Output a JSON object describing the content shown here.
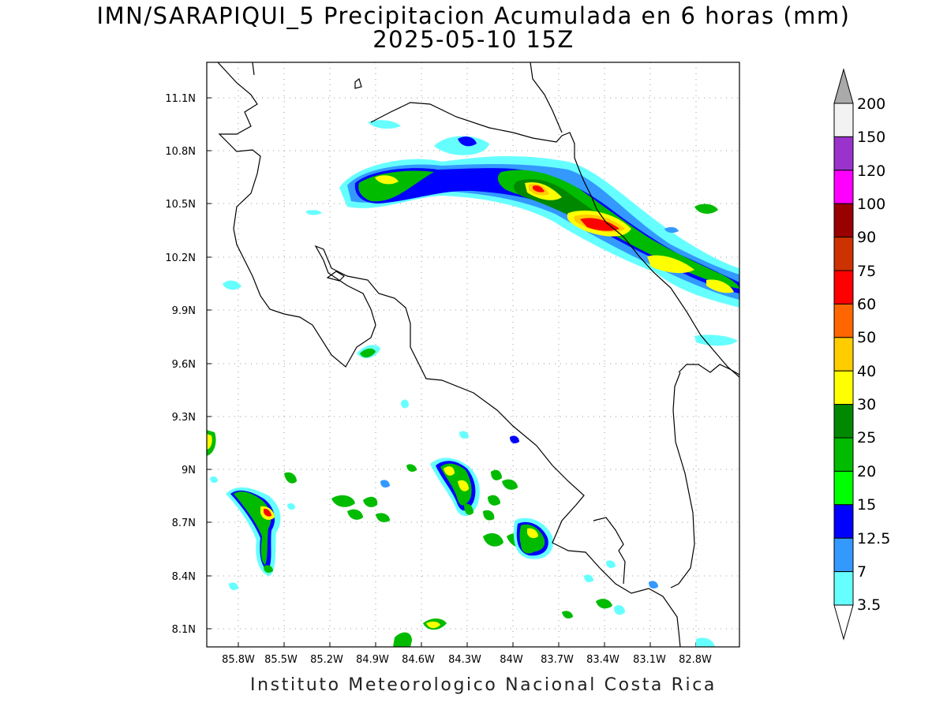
{
  "title": {
    "line1": "IMN/SARAPIQUI_5 Precipitacion Acumulada en 6 horas (mm)",
    "line2": "2025-05-10 15Z"
  },
  "credit": "Instituto Meteorologico Nacional Costa Rica",
  "axes": {
    "lat_ticks": [
      "11.1N",
      "10.8N",
      "10.5N",
      "10.2N",
      "9.9N",
      "9.6N",
      "9.3N",
      "9N",
      "8.7N",
      "8.4N",
      "8.1N"
    ],
    "lon_ticks": [
      "85.8W",
      "85.5W",
      "85.2W",
      "84.9W",
      "84.6W",
      "84.3W",
      "84W",
      "83.7W",
      "83.4W",
      "83.1W",
      "82.8W"
    ]
  },
  "colorbar": {
    "labels": [
      "200",
      "150",
      "120",
      "100",
      "90",
      "75",
      "60",
      "50",
      "40",
      "30",
      "25",
      "20",
      "15",
      "12.5",
      "7",
      "3.5"
    ],
    "colors": [
      "#f2f2f2",
      "#9933cc",
      "#ff00ff",
      "#990000",
      "#cc3300",
      "#ff0000",
      "#ff6600",
      "#ffcc00",
      "#ffff00",
      "#008800",
      "#00bb00",
      "#00ff00",
      "#0000ff",
      "#3399ff",
      "#66ffff"
    ],
    "over_color": "#aaaaaa",
    "under_color": "#ffffff"
  }
}
